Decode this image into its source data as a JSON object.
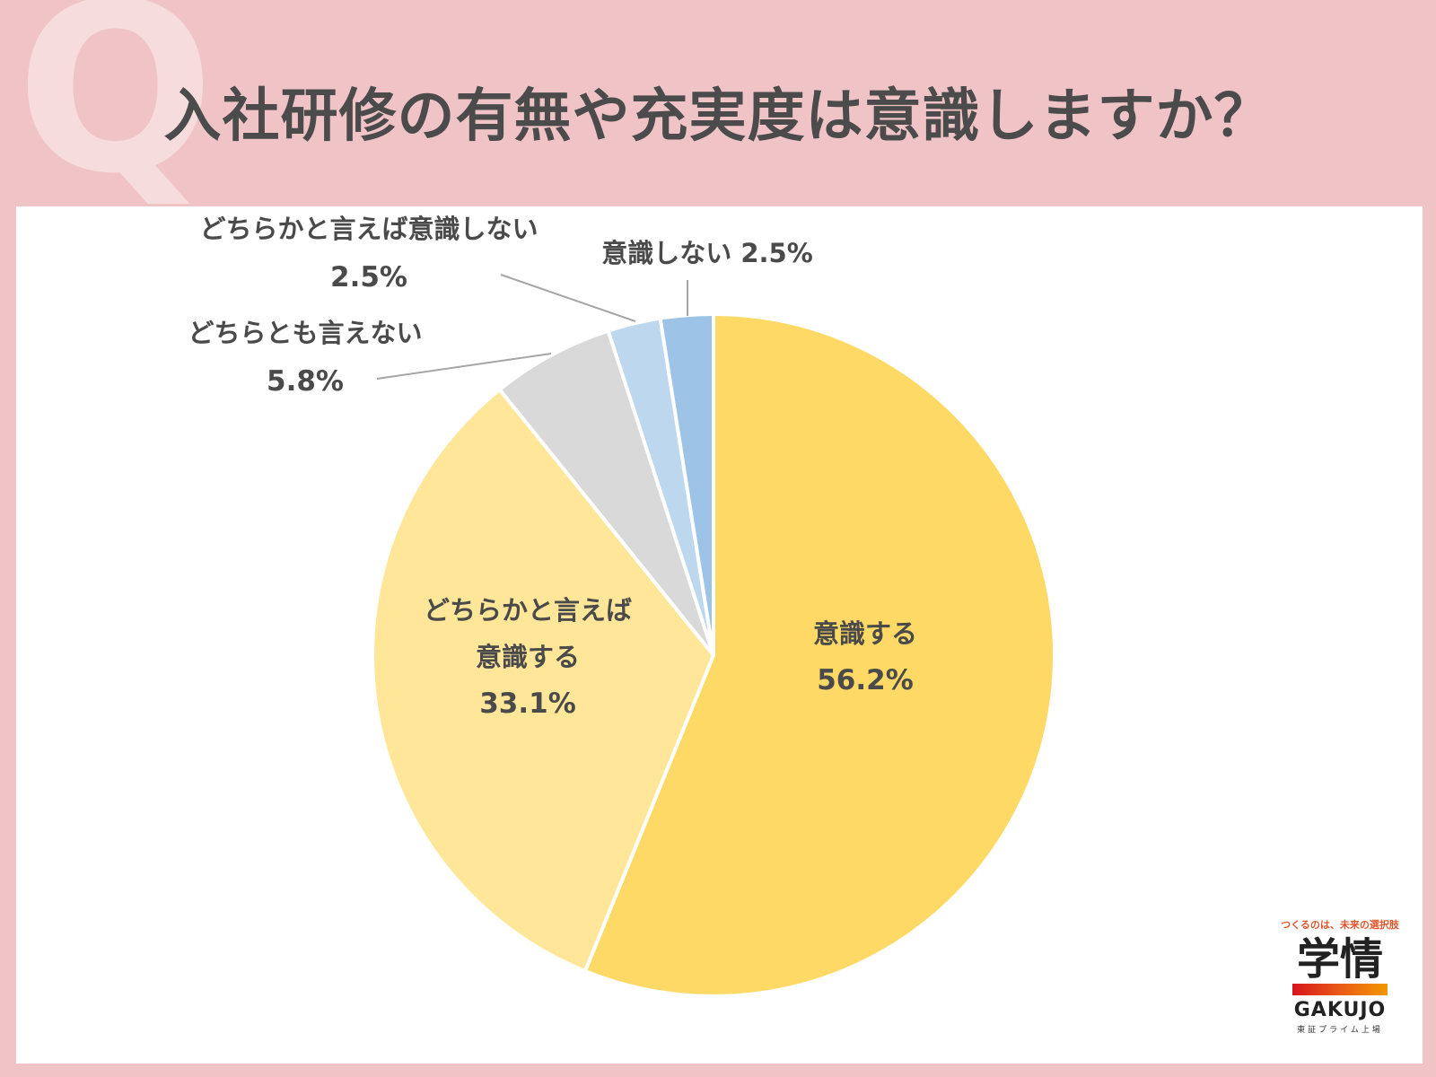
{
  "background_color": "#f0c4c6",
  "q_mark": "Q",
  "title": "入社研修の有無や充実度は意識しますか？",
  "chart_data": {
    "type": "pie",
    "start_angle_deg": 0,
    "direction": "clockwise",
    "slices": [
      {
        "label_lines": [
          "意識する"
        ],
        "value": 56.2,
        "value_text": "56.2%",
        "color": "#ffd966"
      },
      {
        "label_lines": [
          "どちらかと言えば",
          "意識する"
        ],
        "value": 33.1,
        "value_text": "33.1%",
        "color": "#ffe699"
      },
      {
        "label_lines": [
          "どちらとも言えない"
        ],
        "value": 5.8,
        "value_text": "5.8%",
        "color": "#d9d9d9"
      },
      {
        "label_lines": [
          "どちらかと言えば意識しない"
        ],
        "value": 2.5,
        "value_text": "2.5%",
        "color": "#bdd7ee"
      },
      {
        "label_lines": [
          "意識しない"
        ],
        "value": 2.5,
        "value_text": "2.5%",
        "color": "#9dc3e6"
      }
    ]
  },
  "logo": {
    "tagline": "つくるのは、未来の選択肢",
    "name_jp": "学情",
    "name_en": "GAKUJO",
    "sub": "東証プライム上場"
  }
}
